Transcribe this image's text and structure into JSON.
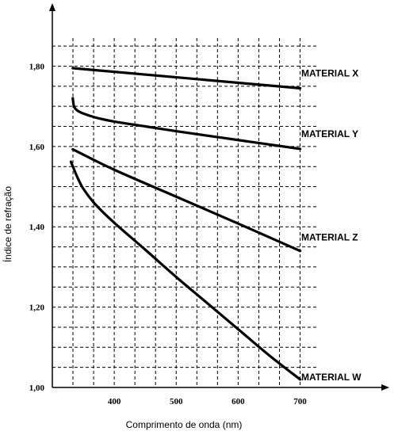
{
  "chart_data": {
    "type": "line",
    "title": "",
    "xlabel": "Comprimento de onda (nm)",
    "ylabel": "Índice de refração",
    "xlim": [
      300,
      730
    ],
    "ylim": [
      1.0,
      1.87
    ],
    "x_ticks": [
      400,
      500,
      600,
      700
    ],
    "x_tick_labels": [
      "400",
      "500",
      "600",
      "700"
    ],
    "y_ticks": [
      1.0,
      1.2,
      1.4,
      1.6,
      1.8
    ],
    "y_tick_labels": [
      "1,00",
      "1,20",
      "1,40",
      "1,60",
      "1,80"
    ],
    "grid": true,
    "grid_style": "dashed",
    "series": [
      {
        "name": "MATERIAL X",
        "x": [
          333,
          700
        ],
        "y": [
          1.795,
          1.745
        ]
      },
      {
        "name": "MATERIAL Y",
        "x": [
          333,
          335,
          340,
          350,
          370,
          400,
          450,
          500,
          550,
          600,
          650,
          700
        ],
        "y": [
          1.72,
          1.7,
          1.69,
          1.682,
          1.672,
          1.662,
          1.65,
          1.638,
          1.627,
          1.616,
          1.605,
          1.594
        ]
      },
      {
        "name": "MATERIAL Z",
        "x": [
          333,
          400,
          500,
          600,
          700
        ],
        "y": [
          1.593,
          1.542,
          1.475,
          1.408,
          1.34
        ]
      },
      {
        "name": "MATERIAL W",
        "x": [
          330,
          340,
          350,
          370,
          400,
          450,
          500,
          550,
          600,
          650,
          700
        ],
        "y": [
          1.562,
          1.525,
          1.495,
          1.455,
          1.41,
          1.343,
          1.275,
          1.21,
          1.145,
          1.08,
          1.02
        ]
      }
    ]
  }
}
